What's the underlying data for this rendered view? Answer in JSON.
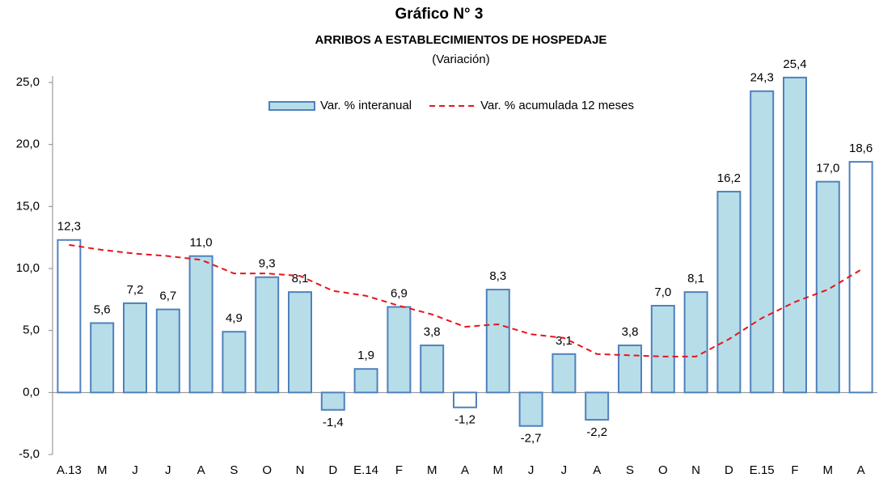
{
  "chart_data": {
    "type": "bar",
    "title": "Gráfico N° 3",
    "subtitle": "ARRIBOS A ESTABLECIMIENTOS DE HOSPEDAJE",
    "note": "(Variación)",
    "categories": [
      "A.13",
      "M",
      "J",
      "J",
      "A",
      "S",
      "O",
      "N",
      "D",
      "E.14",
      "F",
      "M",
      "A",
      "M",
      "J",
      "J",
      "A",
      "S",
      "O",
      "N",
      "D",
      "E.15",
      "F",
      "M",
      "A"
    ],
    "series": [
      {
        "name": "Var. % interanual",
        "type": "bar",
        "color": "#b7dde8",
        "stroke": "#4f81bd",
        "colors": [
          "#ffffff",
          "#b7dde8",
          "#b7dde8",
          "#b7dde8",
          "#b7dde8",
          "#b7dde8",
          "#b7dde8",
          "#b7dde8",
          "#b7dde8",
          "#b7dde8",
          "#b7dde8",
          "#b7dde8",
          "#ffffff",
          "#b7dde8",
          "#b7dde8",
          "#b7dde8",
          "#b7dde8",
          "#b7dde8",
          "#b7dde8",
          "#b7dde8",
          "#b7dde8",
          "#b7dde8",
          "#b7dde8",
          "#b7dde8",
          "#ffffff"
        ],
        "values": [
          12.3,
          5.6,
          7.2,
          6.7,
          11.0,
          4.9,
          9.3,
          8.1,
          -1.4,
          1.9,
          6.9,
          3.8,
          -1.2,
          8.3,
          -2.7,
          3.1,
          -2.2,
          3.8,
          7.0,
          8.1,
          16.2,
          24.3,
          25.4,
          17.0,
          18.6
        ],
        "value_labels": [
          "12,3",
          "5,6",
          "7,2",
          "6,7",
          "11,0",
          "4,9",
          "9,3",
          "8,1",
          "-1,4",
          "1,9",
          "6,9",
          "3,8",
          "-1,2",
          "8,3",
          "-2,7",
          "3,1",
          "-2,2",
          "3,8",
          "7,0",
          "8,1",
          "16,2",
          "24,3",
          "25,4",
          "17,0",
          "18,6"
        ]
      },
      {
        "name": "Var. % acumulada 12 meses",
        "type": "line",
        "color": "#e8141c",
        "values": [
          11.9,
          11.5,
          11.2,
          11.0,
          10.7,
          9.6,
          9.6,
          9.4,
          8.2,
          7.8,
          7.0,
          6.3,
          5.3,
          5.5,
          4.7,
          4.4,
          3.1,
          3.0,
          2.9,
          2.9,
          4.3,
          6.0,
          7.3,
          8.3,
          9.9
        ]
      }
    ],
    "ylim": [
      -5,
      25
    ],
    "yticks": [
      {
        "value": -5,
        "label": "-5,0"
      },
      {
        "value": 0,
        "label": "0,0"
      },
      {
        "value": 5,
        "label": "5,0"
      },
      {
        "value": 10,
        "label": "10,0"
      },
      {
        "value": 15,
        "label": "15,0"
      },
      {
        "value": 20,
        "label": "20,0"
      },
      {
        "value": 25,
        "label": "25,0"
      }
    ]
  }
}
